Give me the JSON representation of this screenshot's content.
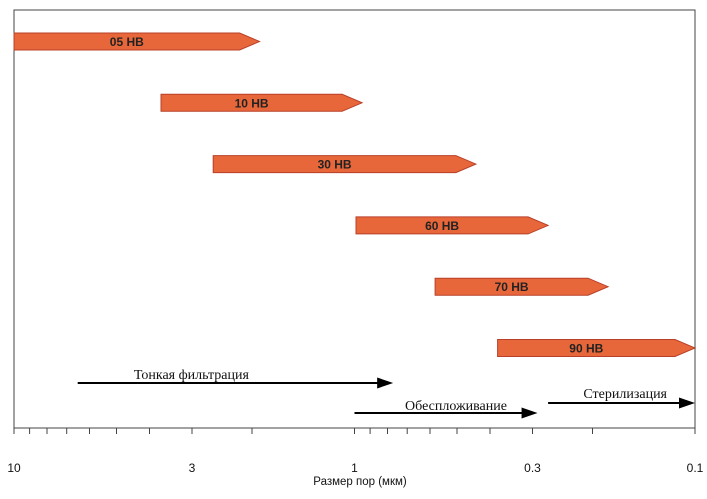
{
  "chart_data": {
    "type": "bar",
    "scale": "log",
    "x_direction": "decreasing",
    "xlim": [
      10,
      0.1
    ],
    "xlabel": "Размер пор (мкм)",
    "ticks": [
      "10",
      "3",
      "1",
      "0.3",
      "0.1"
    ],
    "tick_values": [
      10,
      3,
      1,
      0.3,
      0.1
    ],
    "grid": false,
    "colors": {
      "bar_fill": "#e8673a",
      "bar_stroke": "#b8402a",
      "arrow": "#000000",
      "frame": "#444444"
    },
    "bars": [
      {
        "label": "05 НВ",
        "from": 10,
        "to": 1.9
      },
      {
        "label": "10 НВ",
        "from": 3.7,
        "to": 0.95
      },
      {
        "label": "30 НВ",
        "from": 2.6,
        "to": 0.44
      },
      {
        "label": "60 НВ",
        "from": 0.99,
        "to": 0.27
      },
      {
        "label": "70 НВ",
        "from": 0.58,
        "to": 0.18
      },
      {
        "label": "90 НВ",
        "from": 0.38,
        "to": 0.1
      }
    ],
    "ranges": [
      {
        "label": "Тонкая фильтрация",
        "from": 6.5,
        "to": 0.77
      },
      {
        "label": "Обеспложивание",
        "from": 1.0,
        "to": 0.29
      },
      {
        "label": "Стерилизация",
        "from": 0.27,
        "to": 0.1
      }
    ]
  }
}
